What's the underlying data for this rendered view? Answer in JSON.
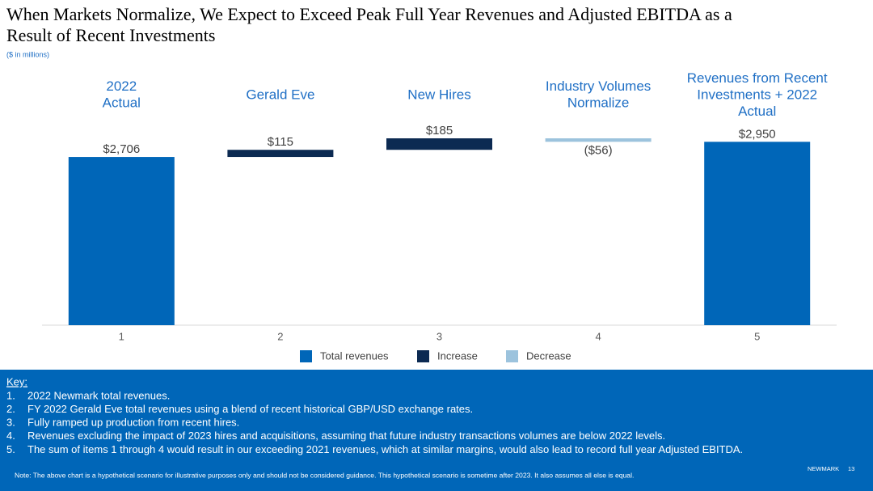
{
  "chart_data": {
    "type": "waterfall",
    "title": "When Markets Normalize, We Expect to Exceed Peak Full Year Revenues and Adjusted EBITDA as a",
    "title_line2": "Result of Recent Investments",
    "subtitle": "($ in millions)",
    "headers": [
      [
        "2022",
        "Actual"
      ],
      [
        "Gerald Eve"
      ],
      [
        "New Hires"
      ],
      [
        "Industry Volumes",
        "Normalize"
      ],
      [
        "Revenues from Recent",
        "Investments + 2022",
        "Actual"
      ]
    ],
    "categories": [
      "1",
      "2",
      "3",
      "4",
      "5"
    ],
    "values": [
      2706,
      115,
      185,
      -56,
      2950
    ],
    "value_labels": [
      "$2,706",
      "$115",
      "$185",
      "($56)",
      "$2,950"
    ],
    "steps": [
      "total",
      "increase",
      "increase",
      "decrease",
      "total"
    ],
    "legend": [
      {
        "name": "Total revenues",
        "color": "#0066b8"
      },
      {
        "name": "Increase",
        "color": "#0c2a52"
      },
      {
        "name": "Decrease",
        "color": "#9cc3dd"
      }
    ]
  },
  "key": {
    "title": "Key:",
    "items": [
      {
        "number": "1.",
        "text": "2022 Newmark total revenues."
      },
      {
        "number": "2.",
        "text": "FY 2022 Gerald Eve total revenues using a blend of recent historical GBP/USD exchange rates."
      },
      {
        "number": "3.",
        "text": "Fully ramped up production from recent hires."
      },
      {
        "number": "4.",
        "text": "Revenues excluding the impact of 2023 hires and acquisitions, assuming that future industry transactions volumes are below 2022 levels."
      },
      {
        "number": "5.",
        "text": "The sum of items 1 through 4 would result in our exceeding 2021 revenues, which at similar margins, would also lead to record full year Adjusted EBITDA."
      }
    ]
  },
  "note": "Note: The above chart is a hypothetical scenario for illustrative purposes only and should not be considered guidance. This hypothetical scenario is sometime after 2023. It also assumes all else is equal.",
  "footer": {
    "brand": "NEWMARK",
    "page": "13"
  }
}
